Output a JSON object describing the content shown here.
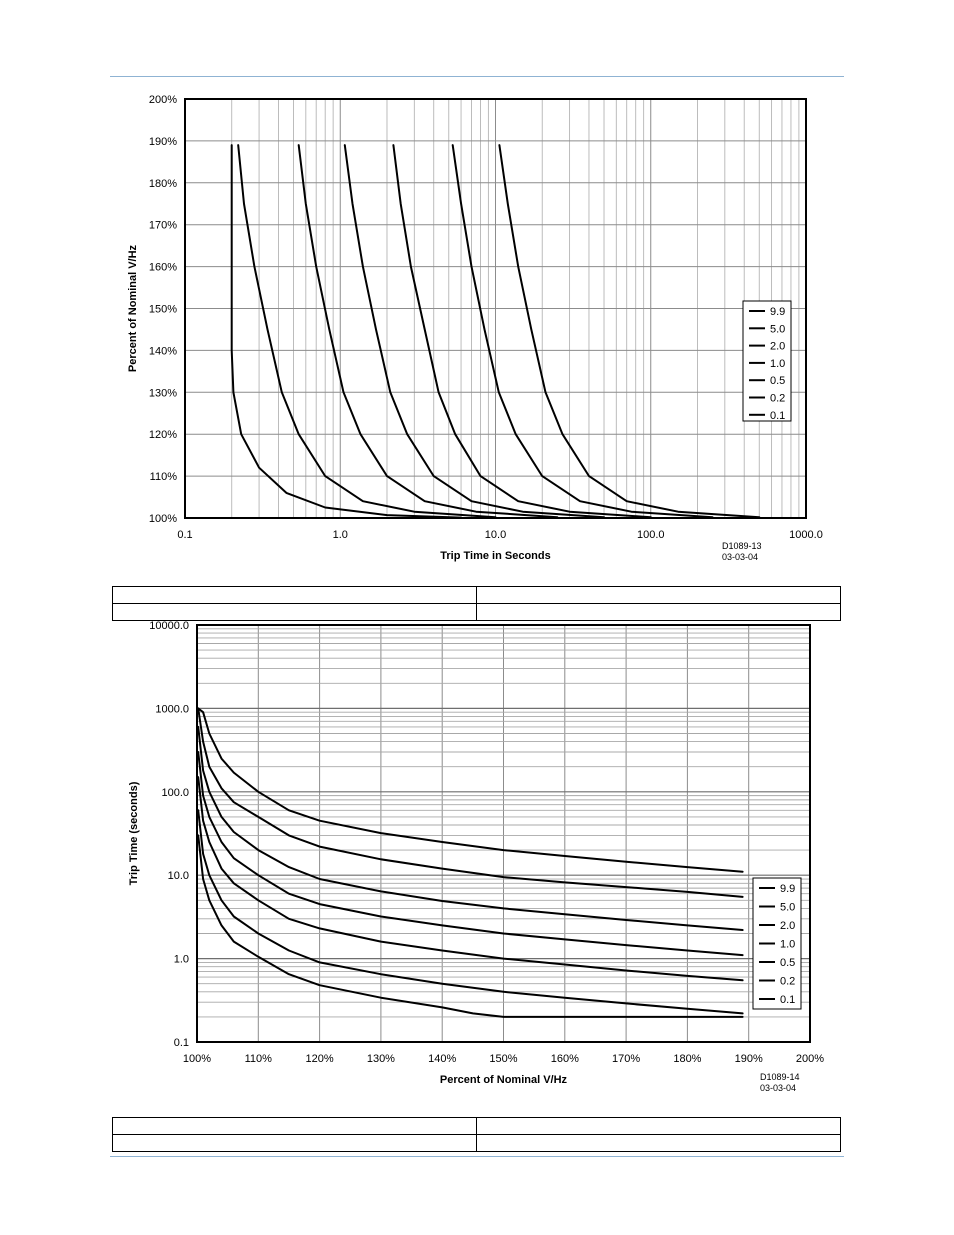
{
  "table1": {
    "rows": [
      [
        "",
        ""
      ],
      [
        "",
        ""
      ]
    ]
  },
  "table2": {
    "rows": [
      [
        "",
        ""
      ],
      [
        "",
        ""
      ]
    ]
  },
  "chart_data": [
    {
      "type": "line",
      "title": "",
      "xlabel": "Trip Time in Seconds",
      "ylabel": "Percent of Nominal V/Hz",
      "xscale": "log",
      "xlim": [
        0.1,
        1000
      ],
      "ylim": [
        100,
        200
      ],
      "x_ticks": [
        "0.1",
        "1.0",
        "10.0",
        "100.0",
        "1000.0"
      ],
      "y_ticks": [
        "100%",
        "110%",
        "120%",
        "130%",
        "140%",
        "150%",
        "160%",
        "170%",
        "180%",
        "190%",
        "200%"
      ],
      "grid": true,
      "legend_position": "right",
      "drawing_id": [
        "D1089-13",
        "03-03-04"
      ],
      "series": [
        {
          "name": "9.9",
          "points": [
            [
              10.6,
              189
            ],
            [
              12,
              175
            ],
            [
              14,
              160
            ],
            [
              17,
              145
            ],
            [
              21,
              130
            ],
            [
              27,
              120
            ],
            [
              40,
              110
            ],
            [
              70,
              104
            ],
            [
              150,
              101.5
            ],
            [
              500,
              100.2
            ]
          ]
        },
        {
          "name": "5.0",
          "points": [
            [
              5.3,
              189
            ],
            [
              6,
              175
            ],
            [
              7,
              160
            ],
            [
              8.5,
              145
            ],
            [
              10.5,
              130
            ],
            [
              13.5,
              120
            ],
            [
              20,
              110
            ],
            [
              35,
              104
            ],
            [
              75,
              101.5
            ],
            [
              250,
              100.2
            ]
          ]
        },
        {
          "name": "2.0",
          "points": [
            [
              2.2,
              189
            ],
            [
              2.45,
              175
            ],
            [
              2.85,
              160
            ],
            [
              3.5,
              145
            ],
            [
              4.3,
              130
            ],
            [
              5.5,
              120
            ],
            [
              8,
              110
            ],
            [
              14,
              104
            ],
            [
              30,
              101.5
            ],
            [
              100,
              100.2
            ]
          ]
        },
        {
          "name": "1.0",
          "points": [
            [
              1.07,
              189
            ],
            [
              1.2,
              175
            ],
            [
              1.4,
              160
            ],
            [
              1.7,
              145
            ],
            [
              2.1,
              130
            ],
            [
              2.7,
              120
            ],
            [
              4,
              110
            ],
            [
              7,
              104
            ],
            [
              15,
              101.5
            ],
            [
              50,
              100.2
            ]
          ]
        },
        {
          "name": "0.5",
          "points": [
            [
              0.54,
              189
            ],
            [
              0.6,
              175
            ],
            [
              0.7,
              160
            ],
            [
              0.85,
              145
            ],
            [
              1.05,
              130
            ],
            [
              1.35,
              120
            ],
            [
              2,
              110
            ],
            [
              3.5,
              104
            ],
            [
              7.5,
              101.5
            ],
            [
              25,
              100.2
            ]
          ]
        },
        {
          "name": "0.2",
          "points": [
            [
              0.22,
              189
            ],
            [
              0.24,
              175
            ],
            [
              0.28,
              160
            ],
            [
              0.34,
              145
            ],
            [
              0.42,
              130
            ],
            [
              0.54,
              120
            ],
            [
              0.8,
              110
            ],
            [
              1.4,
              104
            ],
            [
              3,
              101.5
            ],
            [
              10,
              100.2
            ]
          ]
        },
        {
          "name": "0.1",
          "points": [
            [
              0.2,
              189
            ],
            [
              0.2,
              160
            ],
            [
              0.2,
              140
            ],
            [
              0.205,
              130
            ],
            [
              0.23,
              120
            ],
            [
              0.3,
              112
            ],
            [
              0.45,
              106
            ],
            [
              0.8,
              102.5
            ],
            [
              2,
              100.7
            ],
            [
              6,
              100.1
            ]
          ]
        }
      ]
    },
    {
      "type": "line",
      "title": "",
      "xlabel": "Percent of Nominal V/Hz",
      "ylabel": "Trip Time (seconds)",
      "yscale": "log",
      "xlim": [
        100,
        200
      ],
      "ylim": [
        0.1,
        10000
      ],
      "x_ticks": [
        "100%",
        "110%",
        "120%",
        "130%",
        "140%",
        "150%",
        "160%",
        "170%",
        "180%",
        "190%",
        "200%"
      ],
      "y_ticks": [
        "0.1",
        "1.0",
        "10.0",
        "100.0",
        "1000.0",
        "10000.0"
      ],
      "grid": true,
      "legend_position": "bottom-right",
      "drawing_id": [
        "D1089-14",
        "03-03-04"
      ],
      "series": [
        {
          "name": "9.9",
          "points": [
            [
              100.2,
              1000
            ],
            [
              101,
              900
            ],
            [
              102,
              500
            ],
            [
              104,
              250
            ],
            [
              106,
              170
            ],
            [
              110,
              100
            ],
            [
              115,
              60
            ],
            [
              120,
              45
            ],
            [
              130,
              32
            ],
            [
              140,
              25
            ],
            [
              150,
              20
            ],
            [
              160,
              17
            ],
            [
              170,
              14.5
            ],
            [
              180,
              12.5
            ],
            [
              189,
              11
            ]
          ]
        },
        {
          "name": "5.0",
          "points": [
            [
              100.2,
              1000
            ],
            [
              101,
              400
            ],
            [
              102,
              200
            ],
            [
              104,
              110
            ],
            [
              106,
              75
            ],
            [
              110,
              50
            ],
            [
              115,
              30
            ],
            [
              120,
              22
            ],
            [
              130,
              15.5
            ],
            [
              140,
              12
            ],
            [
              150,
              9.5
            ],
            [
              160,
              8.2
            ],
            [
              170,
              7.2
            ],
            [
              180,
              6.3
            ],
            [
              189,
              5.5
            ]
          ]
        },
        {
          "name": "2.0",
          "points": [
            [
              100.2,
              600
            ],
            [
              101,
              180
            ],
            [
              102,
              100
            ],
            [
              104,
              50
            ],
            [
              106,
              33
            ],
            [
              110,
              20
            ],
            [
              115,
              12.5
            ],
            [
              120,
              9
            ],
            [
              130,
              6.4
            ],
            [
              140,
              4.9
            ],
            [
              150,
              4
            ],
            [
              160,
              3.4
            ],
            [
              170,
              2.9
            ],
            [
              180,
              2.5
            ],
            [
              189,
              2.2
            ]
          ]
        },
        {
          "name": "1.0",
          "points": [
            [
              100.2,
              300
            ],
            [
              101,
              90
            ],
            [
              102,
              50
            ],
            [
              104,
              25
            ],
            [
              106,
              16
            ],
            [
              110,
              10
            ],
            [
              115,
              6
            ],
            [
              120,
              4.5
            ],
            [
              130,
              3.2
            ],
            [
              140,
              2.5
            ],
            [
              150,
              2
            ],
            [
              160,
              1.7
            ],
            [
              170,
              1.45
            ],
            [
              180,
              1.25
            ],
            [
              189,
              1.1
            ]
          ]
        },
        {
          "name": "0.5",
          "points": [
            [
              100.2,
              150
            ],
            [
              101,
              45
            ],
            [
              102,
              25
            ],
            [
              104,
              12
            ],
            [
              106,
              8
            ],
            [
              110,
              5
            ],
            [
              115,
              3
            ],
            [
              120,
              2.3
            ],
            [
              130,
              1.6
            ],
            [
              140,
              1.25
            ],
            [
              150,
              1
            ],
            [
              160,
              0.85
            ],
            [
              170,
              0.72
            ],
            [
              180,
              0.62
            ],
            [
              189,
              0.55
            ]
          ]
        },
        {
          "name": "0.2",
          "points": [
            [
              100.2,
              60
            ],
            [
              101,
              18
            ],
            [
              102,
              10
            ],
            [
              104,
              5
            ],
            [
              106,
              3.2
            ],
            [
              110,
              2
            ],
            [
              115,
              1.25
            ],
            [
              120,
              0.9
            ],
            [
              130,
              0.65
            ],
            [
              140,
              0.5
            ],
            [
              150,
              0.4
            ],
            [
              160,
              0.34
            ],
            [
              170,
              0.29
            ],
            [
              180,
              0.25
            ],
            [
              189,
              0.22
            ]
          ]
        },
        {
          "name": "0.1",
          "points": [
            [
              100.2,
              30
            ],
            [
              101,
              9
            ],
            [
              102,
              5
            ],
            [
              104,
              2.5
            ],
            [
              106,
              1.6
            ],
            [
              110,
              1.05
            ],
            [
              115,
              0.65
            ],
            [
              120,
              0.48
            ],
            [
              130,
              0.34
            ],
            [
              140,
              0.26
            ],
            [
              145,
              0.22
            ],
            [
              150,
              0.2
            ],
            [
              155,
              0.2
            ],
            [
              160,
              0.2
            ],
            [
              170,
              0.2
            ],
            [
              180,
              0.2
            ],
            [
              189,
              0.2
            ]
          ]
        }
      ]
    }
  ]
}
